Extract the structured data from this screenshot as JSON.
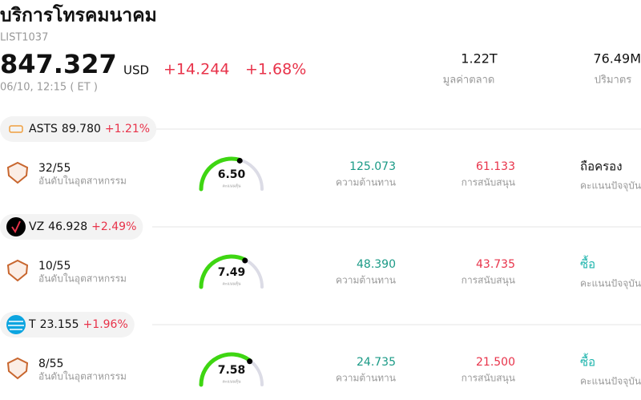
{
  "header": {
    "title": "บริการโทรคมนาคม",
    "code": "LIST1037",
    "price": "847.327",
    "currency": "USD",
    "change": "+14.244",
    "change_percent": "+1.68%",
    "datetime": "06/10, 12:15 ( ET )",
    "stats": [
      {
        "value": "1.22T",
        "label": "มูลค่าตลาด"
      },
      {
        "value": "76.49M",
        "label": "ปริมาตร"
      }
    ]
  },
  "peers": [
    {
      "ticker": "ASTS",
      "price": "89.780",
      "change_percent": "+1.21%",
      "industry_rank": "32/55",
      "industry_rank_label": "อันดับในอุตสาหกรรม",
      "score": "6.50",
      "score_label": "คะแนนหุ้น",
      "resistance": "125.073",
      "resistance_label": "ความต้านทาน",
      "support": "61.133",
      "support_label": "การสนับสนุน",
      "rating": "ถือครอง",
      "rating_color": "#111111",
      "rating_label": "คะแนนปัจจุบัน"
    },
    {
      "ticker": "VZ",
      "price": "46.928",
      "change_percent": "+2.49%",
      "industry_rank": "10/55",
      "industry_rank_label": "อันดับในอุตสาหกรรม",
      "score": "7.49",
      "score_label": "คะแนนหุ้น",
      "resistance": "48.390",
      "resistance_label": "ความต้านทาน",
      "support": "43.735",
      "support_label": "การสนับสนุน",
      "rating": "ซื้อ",
      "rating_color": "#1fb5ad",
      "rating_label": "คะแนนปัจจุบัน"
    },
    {
      "ticker": "T",
      "price": "23.155",
      "change_percent": "+1.96%",
      "industry_rank": "8/55",
      "industry_rank_label": "อันดับในอุตสาหกรรม",
      "score": "7.58",
      "score_label": "คะแนนหุ้น",
      "resistance": "24.735",
      "resistance_label": "ความต้านทาน",
      "support": "21.500",
      "support_label": "การสนับสนุน",
      "rating": "ซื้อ",
      "rating_color": "#1fb5ad",
      "rating_label": "คะแนนปัจจุบัน"
    }
  ]
}
